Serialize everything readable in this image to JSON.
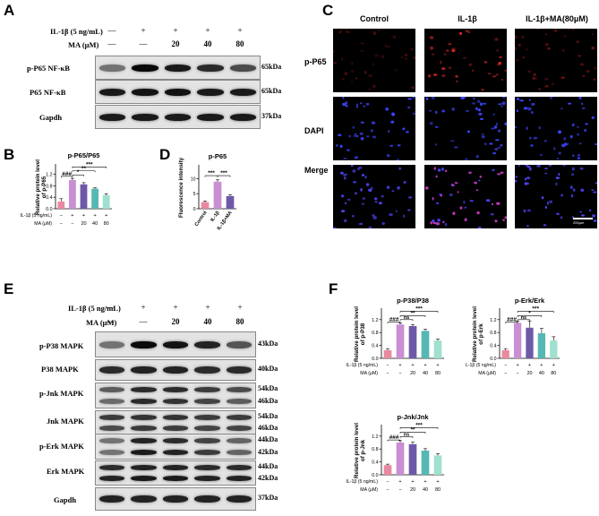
{
  "panels": {
    "A": {
      "letter": "A",
      "rows": [
        "IL-1β (5 ng/mL)",
        "MA (μM)"
      ],
      "il1b": [
        "—",
        "+",
        "+",
        "+",
        "+"
      ],
      "ma": [
        "—",
        "—",
        "20",
        "40",
        "80"
      ],
      "blots": [
        {
          "label": "p-P65 NF-κB",
          "kda": "65kDa"
        },
        {
          "label": "P65 NF-κB",
          "kda": "65kDa"
        },
        {
          "label": "Gapdh",
          "kda": "37kDa"
        }
      ]
    },
    "C": {
      "letter": "C",
      "columns": [
        "Control",
        "IL-1β",
        "IL-1β+MA(80μM)"
      ],
      "rows": [
        "p-P65",
        "DAPI",
        "Merge"
      ],
      "scale_label": "200μm"
    },
    "E": {
      "letter": "E",
      "rows": [
        "IL-1β (5 ng/mL)",
        "MA (μM)"
      ],
      "il1b": [
        "—",
        "+",
        "+",
        "+",
        "+"
      ],
      "ma": [
        "—",
        "—",
        "20",
        "40",
        "80"
      ],
      "blots": [
        {
          "label": "p-P38 MAPK",
          "kda": [
            "43kDa"
          ]
        },
        {
          "label": "P38 MAPK",
          "kda": [
            "40kDa"
          ]
        },
        {
          "label": "p-Jnk MAPK",
          "kda": [
            "54kDa",
            "46kDa"
          ]
        },
        {
          "label": "Jnk MAPK",
          "kda": [
            "54kDa",
            "46kDa"
          ]
        },
        {
          "label": "p-Erk MAPK",
          "kda": [
            "44kDa",
            "42kDa"
          ]
        },
        {
          "label": "Erk MAPK",
          "kda": [
            "44kDa",
            "42kDa"
          ]
        },
        {
          "label": "Gapdh",
          "kda": [
            "37kDa"
          ]
        }
      ]
    },
    "D_letter": "D",
    "B_letter": "B",
    "F_letter": "F"
  },
  "chart_data": [
    {
      "id": "B",
      "type": "bar",
      "title": "p-P65/P65",
      "ylabel": "Relative protein level\nof p-P65",
      "ylim": [
        0,
        1.5
      ],
      "yticks": [
        "0.0",
        "0.4",
        "0.8",
        "1.2"
      ],
      "ytick_values": [
        0,
        0.4,
        0.8,
        1.2
      ],
      "categories": [
        "1",
        "2",
        "3",
        "4",
        "5"
      ],
      "values": [
        0.25,
        1.0,
        0.85,
        0.7,
        0.47
      ],
      "errors": [
        0.1,
        0.06,
        0.06,
        0.03,
        0.05
      ],
      "colors": [
        "#e8899f",
        "#c98fd2",
        "#6e59a8",
        "#57b7b4",
        "#9fe0cf"
      ],
      "xrows": [
        {
          "label": "IL-1β (5 ng/mL)",
          "marks": [
            "−",
            "+",
            "+",
            "+",
            "+"
          ]
        },
        {
          "label": "MA (μM)",
          "marks": [
            "−",
            "−",
            "20",
            "40",
            "80"
          ]
        }
      ],
      "sig": [
        {
          "text": "###",
          "level": 1.13,
          "from": 0,
          "to": 1
        },
        {
          "text": "*",
          "level": 1.18,
          "from": 1,
          "to": 2
        },
        {
          "text": "**",
          "level": 1.32,
          "from": 1,
          "to": 3
        },
        {
          "text": "***",
          "level": 1.46,
          "from": 1,
          "to": 4
        }
      ]
    },
    {
      "id": "D",
      "type": "bar",
      "title": "p-P65",
      "ylabel": "Fluorescence intensity",
      "ylim": [
        0,
        14
      ],
      "yticks": [
        "0",
        "5",
        "10"
      ],
      "ytick_values": [
        0,
        5,
        10
      ],
      "categories": [
        "Control",
        "IL-1β",
        "IL-1β+MA"
      ],
      "values": [
        2.2,
        9.0,
        4.2
      ],
      "errors": [
        0.4,
        0.6,
        0.5
      ],
      "colors": [
        "#e8899f",
        "#c98fd2",
        "#6e59a8"
      ],
      "sig": [
        {
          "text": "***",
          "level": 11.0,
          "from": 0,
          "to": 1
        },
        {
          "text": "***",
          "level": 11.0,
          "from": 1,
          "to": 2
        }
      ]
    },
    {
      "id": "F1",
      "type": "bar",
      "title": "p-P38/P38",
      "ylabel": "Relative protein level\nof p-P38",
      "ylim": [
        0,
        1.5
      ],
      "yticks": [
        "0.0",
        "0.4",
        "0.8",
        "1.2"
      ],
      "ytick_values": [
        0,
        0.4,
        0.8,
        1.2
      ],
      "categories": [
        "1",
        "2",
        "3",
        "4",
        "5"
      ],
      "values": [
        0.25,
        1.05,
        1.0,
        0.85,
        0.55
      ],
      "errors": [
        0.05,
        0.05,
        0.05,
        0.05,
        0.05
      ],
      "colors": [
        "#e8899f",
        "#c98fd2",
        "#6e59a8",
        "#57b7b4",
        "#9fe0cf"
      ],
      "xrows": [
        {
          "label": "IL-1β (5 ng/mL)",
          "marks": [
            "−",
            "+",
            "+",
            "+",
            "+"
          ]
        },
        {
          "label": "MA (μM)",
          "marks": [
            "−",
            "−",
            "20",
            "40",
            "80"
          ]
        }
      ],
      "sig": [
        {
          "text": "###",
          "level": 1.12,
          "from": 0,
          "to": 1
        },
        {
          "text": "ns",
          "level": 1.2,
          "from": 1,
          "to": 2
        },
        {
          "text": "**",
          "level": 1.32,
          "from": 1,
          "to": 3
        },
        {
          "text": "***",
          "level": 1.46,
          "from": 1,
          "to": 4
        }
      ]
    },
    {
      "id": "F2",
      "type": "bar",
      "title": "p-Erk/Erk",
      "ylabel": "Relative protein level\nof p-Erk",
      "ylim": [
        0,
        1.5
      ],
      "yticks": [
        "0.0",
        "0.4",
        "0.8",
        "1.2"
      ],
      "ytick_values": [
        0,
        0.4,
        0.8,
        1.2
      ],
      "categories": [
        "1",
        "2",
        "3",
        "4",
        "5"
      ],
      "values": [
        0.25,
        1.1,
        0.95,
        0.78,
        0.55
      ],
      "errors": [
        0.05,
        0.05,
        0.2,
        0.15,
        0.12
      ],
      "colors": [
        "#e8899f",
        "#c98fd2",
        "#6e59a8",
        "#57b7b4",
        "#9fe0cf"
      ],
      "xrows": [
        {
          "label": "IL-1β (5 ng/mL)",
          "marks": [
            "−",
            "+",
            "+",
            "+",
            "+"
          ]
        },
        {
          "label": "MA (μM)",
          "marks": [
            "−",
            "−",
            "20",
            "40",
            "80"
          ]
        }
      ],
      "sig": [
        {
          "text": "###",
          "level": 1.12,
          "from": 0,
          "to": 1
        },
        {
          "text": "ns",
          "level": 1.2,
          "from": 1,
          "to": 2
        },
        {
          "text": "*",
          "level": 1.32,
          "from": 1,
          "to": 3
        },
        {
          "text": "***",
          "level": 1.46,
          "from": 1,
          "to": 4
        }
      ]
    },
    {
      "id": "F3",
      "type": "bar",
      "title": "p-Jnk/Jnk",
      "ylabel": "Relative protein level\nof p-Jnk",
      "ylim": [
        0,
        1.5
      ],
      "yticks": [
        "0.0",
        "0.4",
        "0.8",
        "1.2"
      ],
      "ytick_values": [
        0,
        0.4,
        0.8,
        1.2
      ],
      "categories": [
        "1",
        "2",
        "3",
        "4",
        "5"
      ],
      "values": [
        0.3,
        1.0,
        0.95,
        0.75,
        0.6
      ],
      "errors": [
        0.03,
        0.06,
        0.06,
        0.06,
        0.06
      ],
      "colors": [
        "#e8899f",
        "#c98fd2",
        "#6e59a8",
        "#57b7b4",
        "#9fe0cf"
      ],
      "xrows": [
        {
          "label": "IL-1β (5 ng/mL)",
          "marks": [
            "−",
            "+",
            "+",
            "+",
            "+"
          ]
        },
        {
          "label": "MA (μM)",
          "marks": [
            "−",
            "−",
            "20",
            "40",
            "80"
          ]
        }
      ],
      "sig": [
        {
          "text": "###",
          "level": 1.08,
          "from": 0,
          "to": 1
        },
        {
          "text": "ns",
          "level": 1.18,
          "from": 1,
          "to": 2
        },
        {
          "text": "**",
          "level": 1.32,
          "from": 1,
          "to": 3
        },
        {
          "text": "***",
          "level": 1.46,
          "from": 1,
          "to": 4
        }
      ]
    }
  ]
}
